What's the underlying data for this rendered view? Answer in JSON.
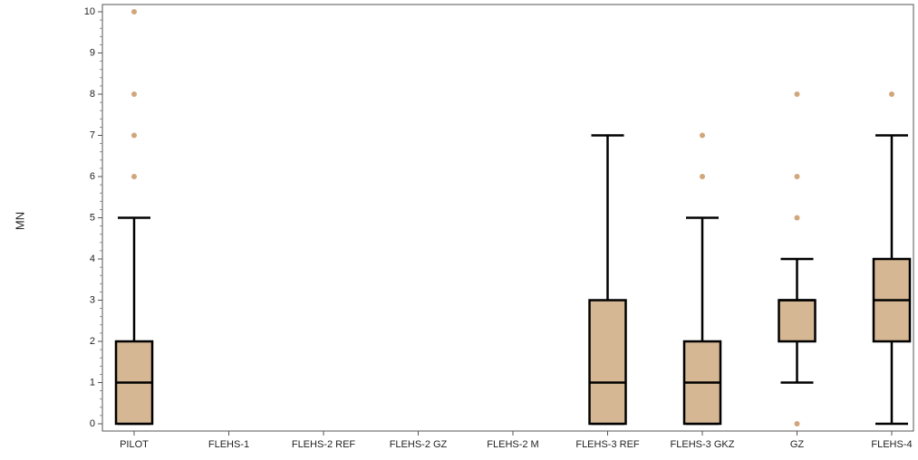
{
  "chart_data": {
    "type": "box",
    "title": "",
    "xlabel": "",
    "ylabel": "MN",
    "ylim": [
      0,
      10
    ],
    "yticks": [
      "0",
      "1",
      "2",
      "3",
      "4",
      "5",
      "6",
      "7",
      "8",
      "9",
      "10"
    ],
    "grid": false,
    "legend": "none",
    "box_color": "#d5b793",
    "outlier_color": "#d1a67a",
    "line_color": "#000000",
    "categories": [
      "PILOT",
      "FLEHS-1",
      "FLEHS-2 REF",
      "FLEHS-2 GZ",
      "FLEHS-2 M",
      "FLEHS-3 REF",
      "FLEHS-3 GKZ",
      "GZ",
      "FLEHS-4"
    ],
    "boxes": [
      {
        "category": "PILOT",
        "min": 0,
        "q1": 0,
        "median": 1,
        "q3": 2,
        "max": 5,
        "outliers": [
          6,
          7,
          8,
          10
        ]
      },
      {
        "category": "FLEHS-1",
        "min": null,
        "q1": null,
        "median": null,
        "q3": null,
        "max": null,
        "outliers": []
      },
      {
        "category": "FLEHS-2 REF",
        "min": null,
        "q1": null,
        "median": null,
        "q3": null,
        "max": null,
        "outliers": []
      },
      {
        "category": "FLEHS-2 GZ",
        "min": null,
        "q1": null,
        "median": null,
        "q3": null,
        "max": null,
        "outliers": []
      },
      {
        "category": "FLEHS-2 M",
        "min": null,
        "q1": null,
        "median": null,
        "q3": null,
        "max": null,
        "outliers": []
      },
      {
        "category": "FLEHS-3 REF",
        "min": 0,
        "q1": 0,
        "median": 1,
        "q3": 3,
        "max": 7,
        "outliers": []
      },
      {
        "category": "FLEHS-3 GKZ",
        "min": 0,
        "q1": 0,
        "median": 1,
        "q3": 2,
        "max": 5,
        "outliers": [
          6,
          7
        ]
      },
      {
        "category": "GZ",
        "min": 1,
        "q1": 2,
        "median": 3,
        "q3": 3,
        "max": 4,
        "outliers": [
          0,
          5,
          6,
          8
        ]
      },
      {
        "category": "FLEHS-4",
        "min": 0,
        "q1": 2,
        "median": 3,
        "q3": 4,
        "max": 7,
        "outliers": [
          8
        ]
      }
    ]
  }
}
